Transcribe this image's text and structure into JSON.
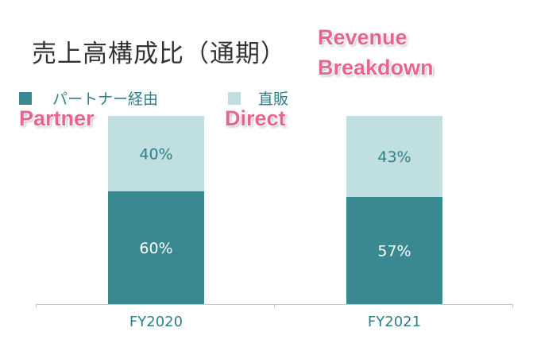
{
  "chart_data": {
    "type": "bar",
    "stacked": true,
    "title": "売上高構成比（通期）",
    "categories": [
      "FY2020",
      "FY2021"
    ],
    "series": [
      {
        "name": "パートナー経由",
        "values": [
          60,
          57
        ],
        "color": "#3a8890"
      },
      {
        "name": "直販",
        "values": [
          40,
          43
        ],
        "color": "#bfdfe0"
      }
    ],
    "value_suffix": "%",
    "ylim": [
      0,
      100
    ],
    "legend": "top-left"
  },
  "annotations": {
    "title_en": [
      "Revenue",
      "Breakdown"
    ],
    "partner": "Partner",
    "direct": "Direct"
  }
}
